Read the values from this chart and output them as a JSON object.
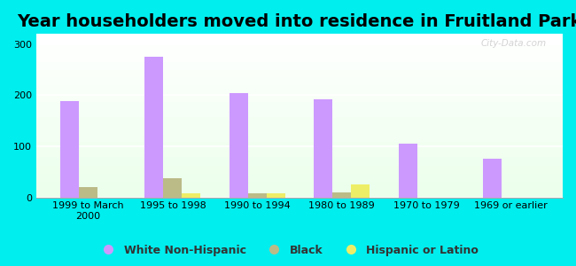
{
  "title": "Year householders moved into residence in Fruitland Park",
  "categories": [
    "1999 to March\n2000",
    "1995 to 1998",
    "1990 to 1994",
    "1980 to 1989",
    "1970 to 1979",
    "1969 or earlier"
  ],
  "white_non_hispanic": [
    188,
    275,
    205,
    192,
    105,
    75
  ],
  "black": [
    20,
    38,
    8,
    10,
    0,
    0
  ],
  "hispanic_or_latino": [
    0,
    8,
    8,
    25,
    0,
    0
  ],
  "bar_width": 0.22,
  "white_color": "#cc99ff",
  "black_color": "#bbbb88",
  "hispanic_color": "#eeee66",
  "ylim": [
    0,
    320
  ],
  "yticks": [
    0,
    100,
    200,
    300
  ],
  "background_color": "#00eeee",
  "watermark": "City-Data.com",
  "title_fontsize": 14,
  "tick_fontsize": 8,
  "legend_fontsize": 9
}
